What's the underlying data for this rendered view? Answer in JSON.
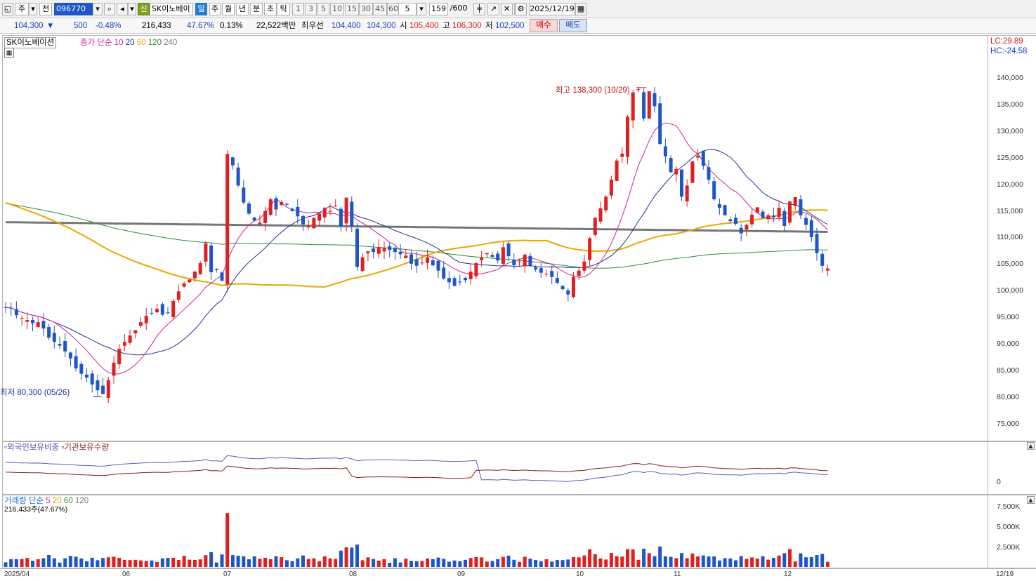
{
  "toolbar": {
    "period_type": "주",
    "prev_label": "전",
    "code": "096770",
    "new_label": "신",
    "stock_name": "SK이노베이",
    "periods": [
      "일",
      "주",
      "월",
      "년",
      "분",
      "초",
      "틱"
    ],
    "active_period": "일",
    "intervals": [
      "1",
      "3",
      "5",
      "10",
      "15",
      "30",
      "45",
      "60"
    ],
    "interval_value": "5",
    "count": "159",
    "count_total": "/600",
    "date": "2025/12/19"
  },
  "info": {
    "price": "104,300",
    "change": "500",
    "change_pct": "-0.48%",
    "volume": "216,433",
    "vol_ratio": "47.67%",
    "turnover": "0.13%",
    "amount": "22,522백만",
    "best_ask_label": "최우선",
    "best_ask": "104,400",
    "best_bid": "104,300",
    "open_label": "시",
    "open": "105,400",
    "high_label": "고",
    "high": "106,300",
    "low_label": "저",
    "low": "102,500",
    "buy_label": "매수",
    "sell_label": "매도"
  },
  "chart_data": {
    "type": "candlestick",
    "stock_label": "SK이노베이션",
    "ma_legend": {
      "title": "종가 단순",
      "periods": [
        "10",
        "20",
        "60",
        "120",
        "240"
      ]
    },
    "lc_label": "LC:29.89",
    "hc_label": "HC:-24.58",
    "high_annotation": "최고 138,300 (10/29)",
    "low_annotation": "최저 80,300 (05/26)",
    "y_ticks": [
      "140,000",
      "135,000",
      "130,000",
      "125,000",
      "120,000",
      "115,000",
      "110,000",
      "105,000",
      "100,000",
      "95,000",
      "90,000",
      "85,000",
      "80,000",
      "75,000"
    ],
    "x_ticks": [
      "2025/04",
      "06",
      "07",
      "08",
      "09",
      "10",
      "11",
      "12",
      "12/19"
    ],
    "ma_colors": {
      "ma10": "#cc2299",
      "ma20": "#22339a",
      "ma60": "#e8a800",
      "ma120": "#2e8b3a",
      "ma240": "#777777"
    },
    "sub1_legend": [
      "외국인보유비중",
      "기관보유수량"
    ],
    "sub1_tick": "0",
    "vol_legend_title": "거래량 단순",
    "vol_legend_periods": [
      "5",
      "20",
      "60",
      "120"
    ],
    "vol_value": "216,433주(47.67%)",
    "vol_ticks": [
      "7,500K",
      "5,000K",
      "2,500K"
    ],
    "closes": [
      97000,
      96800,
      95500,
      95000,
      94600,
      94000,
      94200,
      93000,
      91300,
      90500,
      89800,
      88700,
      87400,
      85500,
      84500,
      83800,
      82500,
      81400,
      80700,
      83300,
      86600,
      89200,
      90500,
      91700,
      92700,
      94200,
      95400,
      95900,
      96700,
      95600,
      96000,
      98200,
      100000,
      101500,
      102200,
      103700,
      105300,
      109000,
      103600,
      104000,
      102000,
      125800,
      123700,
      119900,
      116700,
      114600,
      113300,
      112900,
      115100,
      117300,
      115400,
      116800,
      116300,
      115100,
      114100,
      112600,
      112300,
      113800,
      114600,
      115700,
      115100,
      116100,
      112200,
      117600,
      112300,
      104600,
      106400,
      107500,
      107400,
      108300,
      108100,
      107800,
      107400,
      107000,
      106700,
      105200,
      104800,
      105400,
      106400,
      104900,
      103900,
      102400,
      101700,
      101000,
      101700,
      102100,
      103700,
      105300,
      106300,
      107200,
      106500,
      105800,
      108300,
      106600,
      104900,
      105600,
      106900,
      104800,
      104100,
      103500,
      103300,
      102700,
      101600,
      100400,
      99400,
      102700,
      103900,
      105600,
      110000,
      113800,
      115600,
      117800,
      121000,
      124600,
      125900,
      132800,
      137400,
      138000,
      132500,
      137600,
      134800,
      127700,
      125400,
      122400,
      123000,
      117800,
      119900,
      124400,
      125500,
      123600,
      121000,
      117300,
      115700,
      114300,
      113200,
      112700,
      110900,
      112500,
      114400,
      115800,
      113800,
      114300,
      113900,
      115700,
      112300,
      116900,
      117700,
      114300,
      112500,
      110200,
      107200,
      104800,
      104300
    ]
  }
}
